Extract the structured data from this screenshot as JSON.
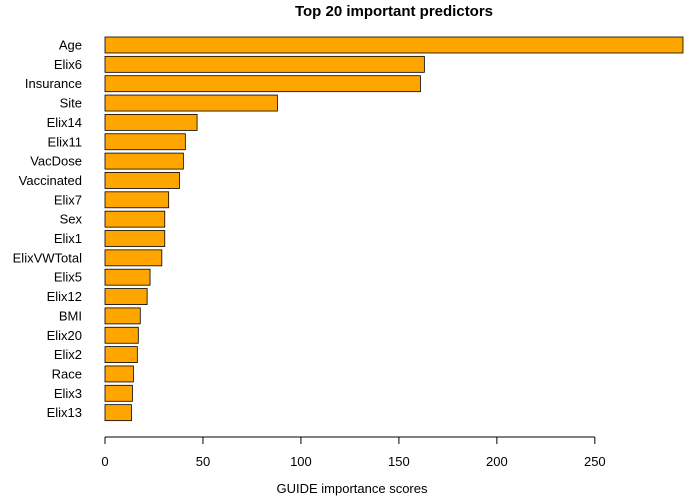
{
  "chart_data": {
    "type": "bar",
    "orientation": "horizontal",
    "title": "Top 20 important predictors",
    "xlabel": "GUIDE importance scores",
    "ylabel": "",
    "xlim": [
      0,
      295
    ],
    "xticks": [
      "0",
      "50",
      "100",
      "150",
      "200",
      "250"
    ],
    "xtick_values": [
      0,
      50,
      100,
      150,
      200,
      250
    ],
    "grid": false,
    "categories": [
      "Age",
      "Elix6",
      "Insurance",
      "Site",
      "Elix14",
      "Elix11",
      "VacDose",
      "Vaccinated",
      "Elix7",
      "Sex",
      "Elix1",
      "ElixVWTotal",
      "Elix5",
      "Elix12",
      "BMI",
      "Elix20",
      "Elix2",
      "Race",
      "Elix3",
      "Elix13"
    ],
    "values": [
      295,
      163,
      161,
      88,
      47,
      41,
      40,
      38,
      32.5,
      30.5,
      30.5,
      29,
      23,
      21.5,
      18,
      17,
      16.5,
      14.5,
      14,
      13.5
    ],
    "bar_color": "#FFA500",
    "edge_color": "#000000"
  }
}
